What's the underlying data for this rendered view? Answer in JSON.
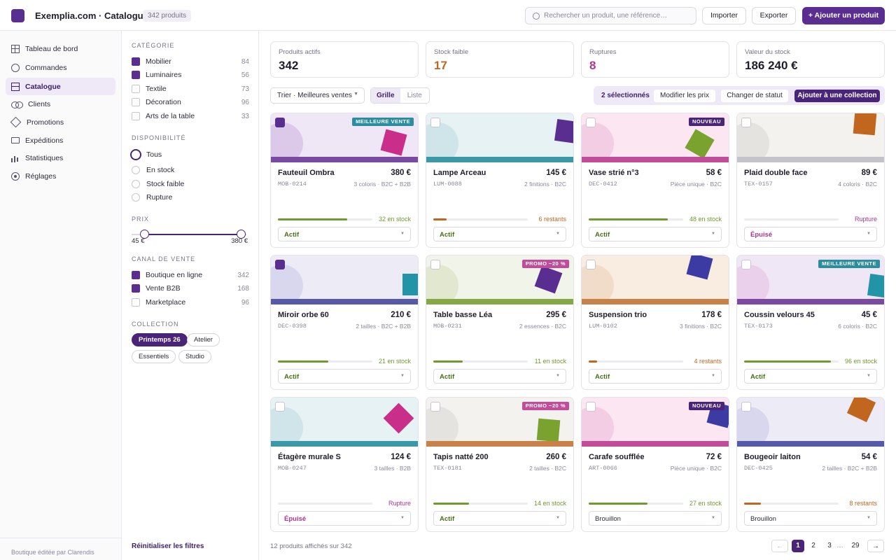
{
  "header": {
    "app_title": "Exemplia.com · Catalogue",
    "product_count": "342 produits",
    "search_placeholder": "Rechercher un produit, une référence…",
    "import_label": "Importer",
    "export_label": "Exporter",
    "add_label": "+ Ajouter un produit"
  },
  "sidebar": {
    "items": [
      {
        "label": "Tableau de bord",
        "icon": "grid-icon"
      },
      {
        "label": "Commandes",
        "icon": "circle-icon"
      },
      {
        "label": "Catalogue",
        "icon": "stack-icon",
        "active": true
      },
      {
        "label": "Clients",
        "icon": "users-icon"
      },
      {
        "label": "Promotions",
        "icon": "diamond-icon"
      },
      {
        "label": "Expéditions",
        "icon": "box-icon"
      },
      {
        "label": "Statistiques",
        "icon": "bar-chart-icon"
      },
      {
        "label": "Réglages",
        "icon": "gear-icon"
      }
    ],
    "footer": "Boutique éditée par Clarendis"
  },
  "filters": {
    "category_title": "Catégorie",
    "categories": [
      {
        "label": "Mobilier",
        "count": "84",
        "checked": true
      },
      {
        "label": "Luminaires",
        "count": "56",
        "checked": true
      },
      {
        "label": "Textile",
        "count": "73",
        "checked": false
      },
      {
        "label": "Décoration",
        "count": "96",
        "checked": false
      },
      {
        "label": "Arts de la table",
        "count": "33",
        "checked": false
      }
    ],
    "availability_title": "Disponibilité",
    "availability": [
      {
        "label": "Tous",
        "selected": true
      },
      {
        "label": "En stock",
        "selected": false
      },
      {
        "label": "Stock faible",
        "selected": false
      },
      {
        "label": "Rupture",
        "selected": false
      }
    ],
    "price_title": "Prix",
    "price_min_label": "45 €",
    "price_max_label": "380 €",
    "price_range_min": 0,
    "price_range_max": 400,
    "price_min": 45,
    "price_max": 380,
    "channel_title": "Canal de vente",
    "channels": [
      {
        "label": "Boutique en ligne",
        "count": "342",
        "checked": true
      },
      {
        "label": "Vente B2B",
        "count": "168",
        "checked": true
      },
      {
        "label": "Marketplace",
        "count": "96",
        "checked": false
      }
    ],
    "collection_title": "Collection",
    "collections": [
      {
        "label": "Printemps 26",
        "active": true
      },
      {
        "label": "Atelier",
        "active": false
      },
      {
        "label": "Essentiels",
        "active": false
      },
      {
        "label": "Studio",
        "active": false
      }
    ],
    "reset_label": "Réinitialiser les filtres"
  },
  "stats": [
    {
      "label": "Produits actifs",
      "value": "342",
      "color": "#1f1d2b"
    },
    {
      "label": "Stock faible",
      "value": "17",
      "color": "#c0661f"
    },
    {
      "label": "Ruptures",
      "value": "8",
      "color": "#b3338f"
    },
    {
      "label": "Valeur du stock",
      "value": "186 240 €",
      "color": "#1f1d2b"
    }
  ],
  "toolbar": {
    "sort_label": "Trier · Meilleures ventes",
    "view_grid": "Grille",
    "view_list": "Liste",
    "selected_label": "2 sélectionnés",
    "bulk_price": "Modifier les prix",
    "bulk_status": "Changer de statut",
    "bulk_collection": "Ajouter à une collection"
  },
  "colors": {
    "accent": "#5a2d91",
    "in_stock": "#6f9a2e",
    "low_stock": "#c0661f",
    "out_of_stock": "#b3338f"
  },
  "products": [
    {
      "name": "Fauteuil Ombra",
      "price": "380 €",
      "sku": "MOB-0214",
      "meta": "3 coloris · B2C + B2B",
      "stock_label": "32 en stock",
      "stock_level": 0.73,
      "stock_state": "ok",
      "status": "Actif",
      "badge": "MEILLEURE VENTE",
      "badge_color": "#2a8ea0",
      "checked": true,
      "bg": "#efe6f6",
      "circle": "#dcc9ea",
      "band": "#7a4aa3",
      "shape": "#c92f8a",
      "shape_rot": 15
    },
    {
      "name": "Lampe Arceau",
      "price": "145 €",
      "sku": "LUM-0088",
      "meta": "2 finitions · B2C",
      "stock_label": "6 restants",
      "stock_level": 0.14,
      "stock_state": "low",
      "status": "Actif",
      "badge": "",
      "badge_color": "",
      "checked": false,
      "bg": "#e6f2f3",
      "circle": "#cfe5e9",
      "band": "#3b98a6",
      "shape": "#5a2d91",
      "shape_rot": 8
    },
    {
      "name": "Vase strié n°3",
      "price": "58 €",
      "sku": "DEC-0412",
      "meta": "Pièce unique · B2C",
      "stock_label": "48 en stock",
      "stock_level": 0.84,
      "stock_state": "ok",
      "status": "Actif",
      "badge": "NOUVEAU",
      "badge_color": "#4a2478",
      "checked": false,
      "bg": "#fbe6f2",
      "circle": "#f3cde3",
      "band": "#c24c9a",
      "shape": "#7aa22e",
      "shape_rot": 30
    },
    {
      "name": "Plaid double face",
      "price": "89 €",
      "sku": "TEX-0157",
      "meta": "4 coloris · B2C",
      "stock_label": "Rupture",
      "stock_level": 0,
      "stock_state": "out",
      "status": "Épuisé",
      "badge": "",
      "badge_color": "",
      "checked": false,
      "bg": "#f3f2ee",
      "circle": "#e4e3e0",
      "band": "#c4c2ca",
      "shape": "#c0661f",
      "shape_rot": 5
    },
    {
      "name": "Miroir orbe 60",
      "price": "210 €",
      "sku": "DEC-0398",
      "meta": "2 tailles · B2C + B2B",
      "stock_label": "21 en stock",
      "stock_level": 0.53,
      "stock_state": "ok",
      "status": "Actif",
      "badge": "",
      "badge_color": "",
      "checked": true,
      "bg": "#ecebf6",
      "circle": "#d9d7ee",
      "band": "#5658a8",
      "shape": "#2194a8",
      "shape_rot": 0
    },
    {
      "name": "Table basse Léa",
      "price": "295 €",
      "sku": "MOB-0231",
      "meta": "2 essences · B2C",
      "stock_label": "11 en stock",
      "stock_level": 0.31,
      "stock_state": "ok",
      "status": "Actif",
      "badge": "PROMO −20 %",
      "badge_color": "#c24c9a",
      "checked": false,
      "bg": "#f1f4e8",
      "circle": "#e2e8d0",
      "band": "#86a844",
      "shape": "#5a2d91",
      "shape_rot": 20
    },
    {
      "name": "Suspension trio",
      "price": "178 €",
      "sku": "LUM-0102",
      "meta": "3 finitions · B2C",
      "stock_label": "4 restants",
      "stock_level": 0.09,
      "stock_state": "low",
      "status": "Actif",
      "badge": "",
      "badge_color": "",
      "checked": false,
      "bg": "#f9ece1",
      "circle": "#f1dcc9",
      "band": "#c9814a",
      "shape": "#3c3aa3",
      "shape_rot": 15
    },
    {
      "name": "Coussin velours 45",
      "price": "45 €",
      "sku": "TEX-0173",
      "meta": "6 coloris · B2C",
      "stock_label": "96 en stock",
      "stock_level": 0.92,
      "stock_state": "ok",
      "status": "Actif",
      "badge": "MEILLEURE VENTE",
      "badge_color": "#2a8ea0",
      "checked": false,
      "bg": "#efe6f6",
      "circle": "#ead0ea",
      "band": "#7a4aa3",
      "shape": "#2194a8",
      "shape_rot": 8
    },
    {
      "name": "Étagère murale S",
      "price": "124 €",
      "sku": "MOB-0247",
      "meta": "3 tailles · B2B",
      "stock_label": "Rupture",
      "stock_level": 0,
      "stock_state": "out",
      "status": "Épuisé",
      "badge": "",
      "badge_color": "",
      "checked": false,
      "bg": "#e6f2f3",
      "circle": "#cfe5e9",
      "band": "#3b98a6",
      "shape": "#c92f8a",
      "shape_rot": 45
    },
    {
      "name": "Tapis natté 200",
      "price": "260 €",
      "sku": "TEX-0181",
      "meta": "2 tailles · B2C",
      "stock_label": "14 en stock",
      "stock_level": 0.38,
      "stock_state": "ok",
      "status": "Actif",
      "badge": "PROMO −20 %",
      "badge_color": "#c24c9a",
      "checked": false,
      "bg": "#f3f2ee",
      "circle": "#e4e3e0",
      "band": "#c9814a",
      "shape": "#7aa22e",
      "shape_rot": 5
    },
    {
      "name": "Carafe soufflée",
      "price": "72 €",
      "sku": "ART-0066",
      "meta": "Pièce unique · B2C",
      "stock_label": "27 en stock",
      "stock_level": 0.62,
      "stock_state": "ok",
      "status": "Brouillon",
      "badge": "NOUVEAU",
      "badge_color": "#4a2478",
      "checked": false,
      "bg": "#fbe6f2",
      "circle": "#f3cde3",
      "band": "#c24c9a",
      "shape": "#3c3aa3",
      "shape_rot": 15
    },
    {
      "name": "Bougeoir laiton",
      "price": "54 €",
      "sku": "DEC-0425",
      "meta": "2 tailles · B2C + B2B",
      "stock_label": "8 restants",
      "stock_level": 0.18,
      "stock_state": "low",
      "status": "Brouillon",
      "badge": "",
      "badge_color": "",
      "checked": false,
      "bg": "#ecebf6",
      "circle": "#d9d7ee",
      "band": "#5658a8",
      "shape": "#c0661f",
      "shape_rot": 25
    }
  ],
  "footer": {
    "shown_label": "12 produits affichés sur 342",
    "prev": "←",
    "next": "→",
    "pages": [
      "1",
      "2",
      "3",
      "…",
      "29"
    ],
    "current_page": "1"
  }
}
